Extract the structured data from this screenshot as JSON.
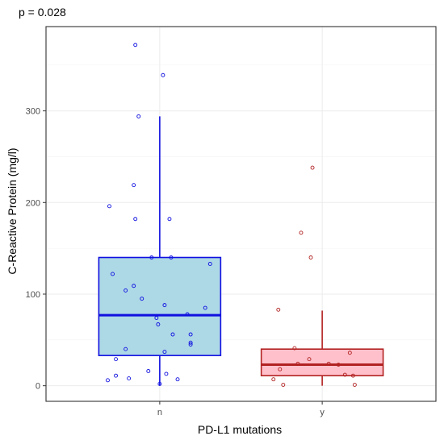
{
  "chart_data": {
    "type": "boxplot",
    "subtitle": "p =  0.028",
    "xlabel": "PD-L1 mutations",
    "ylabel": "C-Reactive Protein (mg/l)",
    "ylim": [
      -17,
      392
    ],
    "yticks": [
      0,
      100,
      200,
      300
    ],
    "grid": true,
    "legend": "none",
    "groups": [
      {
        "name": "n",
        "box_fill": "#add8e6",
        "box_stroke": "#1010e0",
        "stats": {
          "min": 0,
          "q1": 33,
          "median": 77,
          "q3": 140,
          "whisker_high": 294
        },
        "points": [
          {
            "x_jitter": -0.15,
            "y": 372
          },
          {
            "x_jitter": 0.02,
            "y": 339
          },
          {
            "x_jitter": -0.13,
            "y": 294
          },
          {
            "x_jitter": -0.16,
            "y": 219
          },
          {
            "x_jitter": -0.31,
            "y": 196
          },
          {
            "x_jitter": -0.15,
            "y": 182
          },
          {
            "x_jitter": 0.06,
            "y": 182
          },
          {
            "x_jitter": -0.05,
            "y": 140
          },
          {
            "x_jitter": 0.07,
            "y": 140
          },
          {
            "x_jitter": 0.31,
            "y": 133
          },
          {
            "x_jitter": -0.29,
            "y": 122
          },
          {
            "x_jitter": -0.16,
            "y": 109
          },
          {
            "x_jitter": -0.21,
            "y": 104
          },
          {
            "x_jitter": -0.11,
            "y": 95
          },
          {
            "x_jitter": 0.03,
            "y": 88
          },
          {
            "x_jitter": 0.28,
            "y": 85
          },
          {
            "x_jitter": 0.17,
            "y": 78
          },
          {
            "x_jitter": -0.02,
            "y": 74
          },
          {
            "x_jitter": -0.01,
            "y": 67
          },
          {
            "x_jitter": 0.08,
            "y": 56
          },
          {
            "x_jitter": 0.19,
            "y": 56
          },
          {
            "x_jitter": 0.19,
            "y": 47
          },
          {
            "x_jitter": 0.19,
            "y": 45
          },
          {
            "x_jitter": -0.21,
            "y": 40
          },
          {
            "x_jitter": 0.03,
            "y": 37
          },
          {
            "x_jitter": -0.27,
            "y": 29
          },
          {
            "x_jitter": 0.04,
            "y": 13
          },
          {
            "x_jitter": -0.07,
            "y": 16
          },
          {
            "x_jitter": -0.27,
            "y": 11
          },
          {
            "x_jitter": -0.19,
            "y": 8
          },
          {
            "x_jitter": -0.32,
            "y": 6
          },
          {
            "x_jitter": 0.11,
            "y": 7
          },
          {
            "x_jitter": 0.0,
            "y": 2
          }
        ]
      },
      {
        "name": "y",
        "box_fill": "#ffc0cb",
        "box_stroke": "#b22222",
        "stats": {
          "min": 0,
          "q1": 11,
          "median": 23,
          "q3": 40,
          "whisker_high": 82
        },
        "points": [
          {
            "x_jitter": -0.06,
            "y": 238
          },
          {
            "x_jitter": -0.13,
            "y": 167
          },
          {
            "x_jitter": -0.07,
            "y": 140
          },
          {
            "x_jitter": -0.27,
            "y": 83
          },
          {
            "x_jitter": -0.17,
            "y": 41
          },
          {
            "x_jitter": 0.17,
            "y": 36
          },
          {
            "x_jitter": -0.08,
            "y": 29
          },
          {
            "x_jitter": 0.04,
            "y": 24
          },
          {
            "x_jitter": -0.15,
            "y": 24
          },
          {
            "x_jitter": -0.26,
            "y": 18
          },
          {
            "x_jitter": 0.1,
            "y": 23
          },
          {
            "x_jitter": 0.14,
            "y": 12
          },
          {
            "x_jitter": 0.19,
            "y": 11
          },
          {
            "x_jitter": -0.3,
            "y": 7
          },
          {
            "x_jitter": -0.24,
            "y": 1
          },
          {
            "x_jitter": 0.2,
            "y": 1
          }
        ]
      }
    ]
  }
}
